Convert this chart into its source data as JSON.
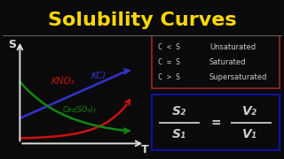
{
  "title": "Solubility Curves",
  "title_color": "#FFD700",
  "background_color": "#0a0a0a",
  "title_fontsize": 16,
  "curves": {
    "KNO3": {
      "color": "#CC1111",
      "label": "KNO₃"
    },
    "KCl": {
      "color": "#3333CC",
      "label": "KCl"
    },
    "Ce2SO4": {
      "color": "#118811",
      "label": "Ce₂(SO₄)₃"
    }
  },
  "axis_color": "#DDDDDD",
  "S_label": "S",
  "T_label": "T",
  "legend_box_color": "#882222",
  "legend_text_color": "#CCCCCC",
  "legend_items": [
    {
      "expr": "C < S",
      "meaning": "Unsaturated"
    },
    {
      "expr": "C = S",
      "meaning": "Saturated"
    },
    {
      "expr": "C > S",
      "meaning": "Supersaturated"
    }
  ],
  "formula_box_color": "#1111AA",
  "formula_text_color": "#CCCCCC"
}
